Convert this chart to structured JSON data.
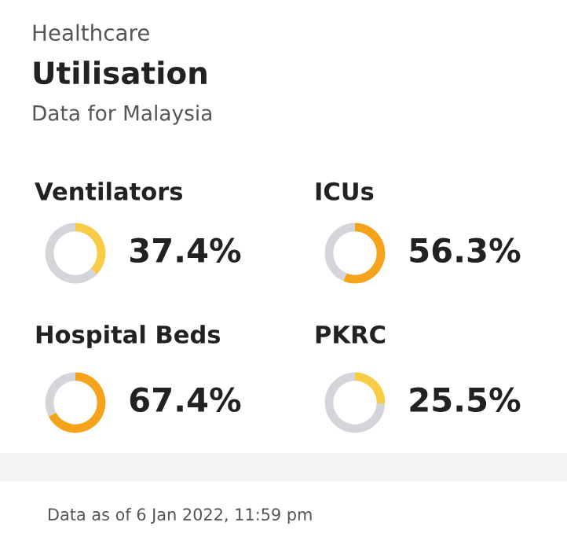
{
  "chart_data": [
    {
      "type": "other",
      "title": "Utilisation",
      "subtitle": "Data for Malaysia",
      "annotations": [
        "Healthcare",
        "Data as of 6 Jan 2022, 11:59 pm"
      ]
    },
    {
      "type": "donut",
      "title": "Ventilators",
      "categories": [
        null,
        null
      ],
      "values": [
        37.4,
        62.6
      ],
      "colors": [
        "#f8cc45",
        "#d3d5db"
      ],
      "value_labels": [
        "37.4%",
        null
      ]
    },
    {
      "type": "donut",
      "title": "ICUs",
      "categories": [
        null,
        null
      ],
      "values": [
        56.3,
        43.7
      ],
      "colors": [
        "#f5a31a",
        "#d3d5db"
      ],
      "value_labels": [
        "56.3%",
        null
      ]
    },
    {
      "type": "donut",
      "title": "Hospital Beds",
      "categories": [
        null,
        null
      ],
      "values": [
        67.4,
        32.6
      ],
      "colors": [
        "#f5a31a",
        "#d3d5db"
      ],
      "value_labels": [
        "67.4%",
        null
      ]
    },
    {
      "type": "donut",
      "title": "PKRC",
      "categories": [
        null,
        null
      ],
      "values": [
        25.5,
        74.5
      ],
      "colors": [
        "#f8cc45",
        "#d3d5db"
      ],
      "value_labels": [
        "25.5%",
        null
      ]
    }
  ]
}
